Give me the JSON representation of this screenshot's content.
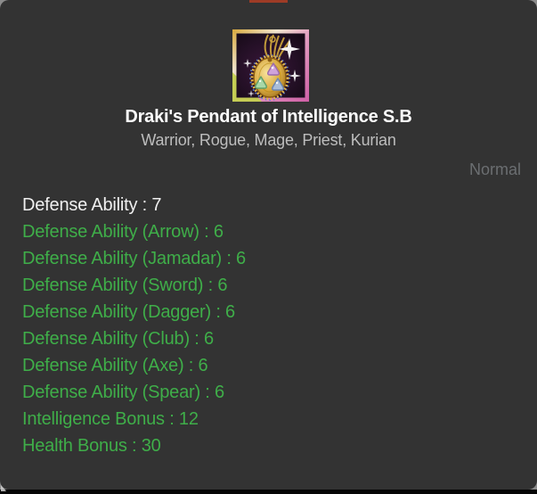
{
  "item_tooltip": {
    "title": "Draki's Pendant of Intelligence S.B",
    "usable_classes": "Warrior, Rogue, Mage, Priest, Kurian",
    "grade": "Normal",
    "icon": "pendant-icon",
    "stats": [
      {
        "text": "Defense Ability : 7",
        "type": "base"
      },
      {
        "text": "Defense Ability (Arrow) : 6",
        "type": "bonus"
      },
      {
        "text": "Defense Ability (Jamadar) : 6",
        "type": "bonus"
      },
      {
        "text": "Defense Ability (Sword) : 6",
        "type": "bonus"
      },
      {
        "text": "Defense Ability (Dagger) : 6",
        "type": "bonus"
      },
      {
        "text": "Defense Ability (Club) : 6",
        "type": "bonus"
      },
      {
        "text": "Defense Ability (Axe) : 6",
        "type": "bonus"
      },
      {
        "text": "Defense Ability (Spear) : 6",
        "type": "bonus"
      },
      {
        "text": "Intelligence Bonus : 12",
        "type": "bonus"
      },
      {
        "text": "Health Bonus : 30",
        "type": "bonus"
      }
    ]
  },
  "colors": {
    "tooltip_bg": "#333333",
    "title_text": "#ffffff",
    "subtitle_text": "#bdbdbd",
    "grade_text": "#6b6e71",
    "base_stat": "#f0f0f0",
    "bonus_stat": "#3fae49",
    "red_bar": "#9e3b26"
  }
}
